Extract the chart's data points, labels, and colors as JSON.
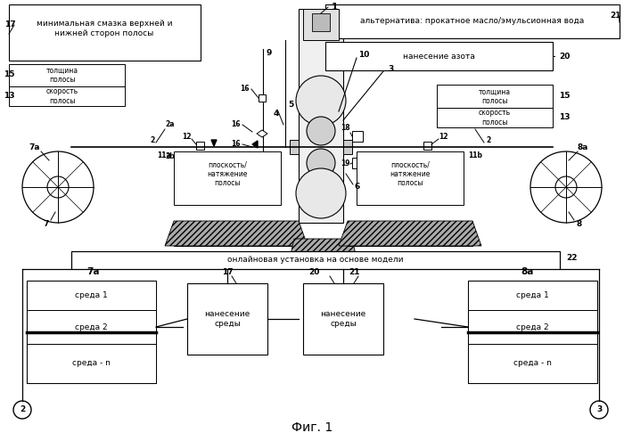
{
  "bg_color": "#ffffff",
  "fig_width": 7.0,
  "fig_height": 4.95,
  "title": "Фиг. 1",
  "label_top_left_box": "минимальная смазка верхней и\nнижней сторон полосы",
  "label_top_right_box": "альтернатива: прокатное масло/эмульсионная вода",
  "label_nitrogen": "нанесение азота",
  "label_thickness_l": "толщина\nполосы",
  "label_speed_l": "скорость\nполосы",
  "label_thickness_r": "толщина\nполосы",
  "label_speed_r": "скорость\nполосы",
  "label_flatness_l": "плоскость/\nнатяжение\nполосы",
  "label_flatness_r": "плоскость/\nнатяжение\nполосы",
  "label_online": "онлайновая установка на основе модели",
  "label_media1": "среда 1",
  "label_media2": "среда 2",
  "label_median": "среда - n",
  "label_apply17": "нанесение\nсреды",
  "label_apply20": "нанесение\nсреды",
  "font_size_tiny": 5.5,
  "font_size_small": 6.5,
  "font_size_medium": 7.5,
  "font_size_large": 10
}
